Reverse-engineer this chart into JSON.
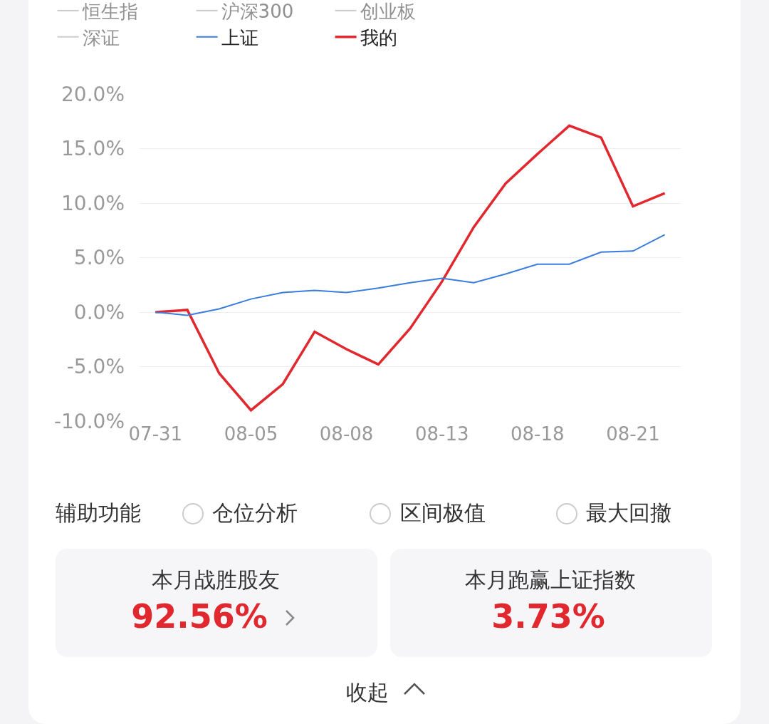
{
  "chart_data": [
    {
      "type": "line",
      "categories": [
        "07-31",
        null,
        null,
        "08-05",
        null,
        null,
        "08-08",
        null,
        null,
        "08-13",
        null,
        null,
        "08-18",
        null,
        null,
        "08-21",
        null
      ],
      "series": [
        {
          "name": "我的",
          "color": "#e0282e",
          "values": [
            0.0,
            0.2,
            -5.6,
            -9.0,
            -6.6,
            -1.8,
            -3.4,
            -4.8,
            -1.5,
            2.8,
            7.8,
            11.8,
            14.5,
            17.1,
            16.0,
            9.7,
            10.9
          ]
        },
        {
          "name": "上证",
          "color": "#3b7ddd",
          "values": [
            0.0,
            -0.3,
            0.3,
            1.2,
            1.8,
            2.0,
            1.8,
            2.2,
            2.7,
            3.1,
            2.7,
            3.5,
            4.4,
            4.4,
            5.5,
            5.6,
            7.1
          ]
        },
        {
          "name": "深证",
          "color": "#999999",
          "values": [
            null,
            null,
            null,
            null,
            null,
            null,
            null,
            null,
            null,
            null,
            null,
            null,
            null,
            null,
            null,
            null,
            null
          ]
        },
        {
          "name": "创业板",
          "color": "#999999",
          "values": [
            null,
            null,
            null,
            null,
            null,
            null,
            null,
            null,
            null,
            null,
            null,
            null,
            null,
            null,
            null,
            null,
            null
          ]
        },
        {
          "name": "沪深300",
          "color": "#999999",
          "values": [
            null,
            null,
            null,
            null,
            null,
            null,
            null,
            null,
            null,
            null,
            null,
            null,
            null,
            null,
            null,
            null,
            null
          ]
        },
        {
          "name": "恒生指",
          "color": "#999999",
          "values": [
            null,
            null,
            null,
            null,
            null,
            null,
            null,
            null,
            null,
            null,
            null,
            null,
            null,
            null,
            null,
            null,
            null
          ]
        }
      ],
      "ylim": [
        -10,
        20
      ],
      "yticks": [
        {
          "value": -10,
          "label": "-10.0%"
        },
        {
          "value": -5,
          "label": "-5.0%"
        },
        {
          "value": 0,
          "label": "0.0%"
        },
        {
          "value": 5,
          "label": "5.0%"
        },
        {
          "value": 10,
          "label": "10.0%"
        },
        {
          "value": 15,
          "label": "15.0%"
        },
        {
          "value": 20,
          "label": "20.0%"
        }
      ],
      "grid": "y",
      "legend": "top",
      "marker": "none",
      "line_style": "solid"
    },
    {
      "type": "other",
      "annotations": [
        "辅助功能",
        "仓位分析",
        "区间极值",
        "最大回撤",
        "本月战胜股友",
        "92.56%",
        "本月跑赢上证指数",
        "3.73%",
        "收起"
      ]
    }
  ]
}
